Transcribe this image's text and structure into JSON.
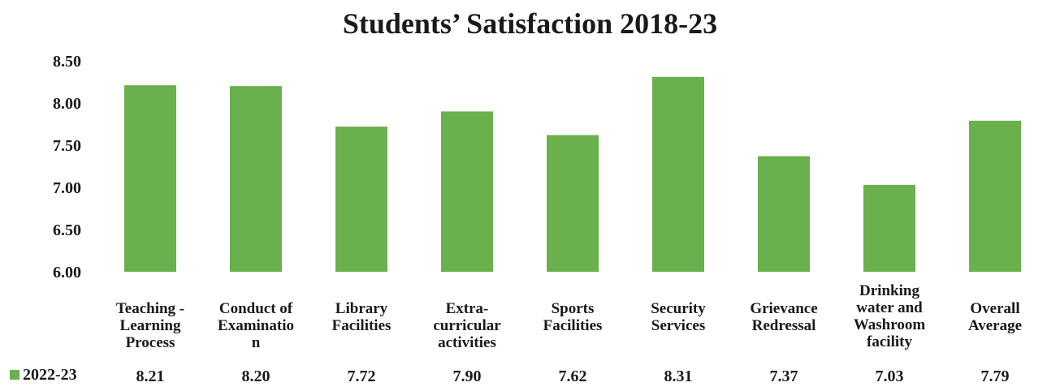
{
  "chart_data": {
    "type": "bar",
    "title": "Students’ Satisfaction 2018-23",
    "xlabel": "",
    "ylabel": "",
    "ylim": [
      6.0,
      8.5
    ],
    "yticks": [
      "8.50",
      "8.00",
      "7.50",
      "7.00",
      "6.50",
      "6.00"
    ],
    "grid": false,
    "legend_position": "bottom-left (data table row)",
    "categories": [
      [
        "Teaching -",
        "Learning",
        "Process"
      ],
      [
        "Conduct of",
        "Examinatio",
        "n"
      ],
      [
        "Library",
        "Facilities"
      ],
      [
        "Extra-",
        "curricular",
        "activities"
      ],
      [
        "Sports",
        "Facilities"
      ],
      [
        "Security",
        "Services"
      ],
      [
        "Grievance",
        "Redressal"
      ],
      [
        "Drinking",
        "water and",
        "Washroom",
        "facility"
      ],
      [
        "Overall",
        "Average"
      ]
    ],
    "series": [
      {
        "name": "2022-23",
        "color": "#6ab04c",
        "values": [
          8.21,
          8.2,
          7.72,
          7.9,
          7.62,
          8.31,
          7.37,
          7.03,
          7.79
        ],
        "value_labels": [
          "8.21",
          "8.20",
          "7.72",
          "7.90",
          "7.62",
          "8.31",
          "7.37",
          "7.03",
          "7.79"
        ]
      }
    ]
  }
}
